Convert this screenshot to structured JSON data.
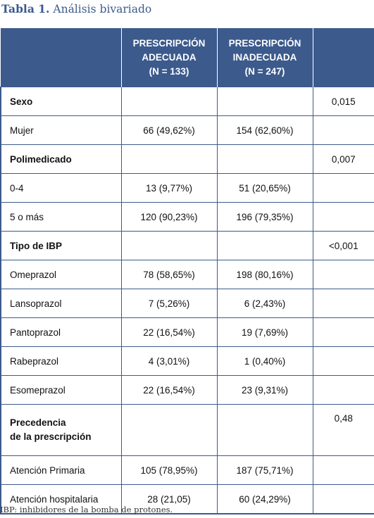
{
  "caption": {
    "label": "Tabla 1.",
    "title": "Análisis bivariado"
  },
  "header": {
    "col2": [
      "PRESCRIPCIÓN",
      "ADECUADA",
      "(N = 133)"
    ],
    "col3": [
      "PRESCRIPCIÓN",
      "INADECUADA",
      "(N = 247)"
    ]
  },
  "rows": [
    {
      "label": "Sexo",
      "a": "",
      "b": "",
      "p": "0,015"
    },
    {
      "label": "Mujer",
      "a": "66 (49,62%)",
      "b": "154 (62,60%)",
      "p": ""
    },
    {
      "label": "Polimedicado",
      "a": "",
      "b": "",
      "p": "0,007"
    },
    {
      "label": "0-4",
      "a": "13 (9,77%)",
      "b": "51 (20,65%)",
      "p": ""
    },
    {
      "label": "5 o más",
      "a": "120 (90,23%)",
      "b": "196 (79,35%)",
      "p": ""
    },
    {
      "label": "Tipo de IBP",
      "a": "",
      "b": "",
      "p": "<0,001"
    },
    {
      "label": "Omeprazol",
      "a": "78 (58,65%)",
      "b": "198 (80,16%)",
      "p": ""
    },
    {
      "label": "Lansoprazol",
      "a": "7 (5,26%)",
      "b": "6 (2,43%)",
      "p": ""
    },
    {
      "label": "Pantoprazol",
      "a": "22 (16,54%)",
      "b": "19 (7,69%)",
      "p": ""
    },
    {
      "label": "Rabeprazol",
      "a": "4 (3,01%)",
      "b": "1 (0,40%)",
      "p": ""
    },
    {
      "label": "Esomeprazol",
      "a": "22 (16,54%)",
      "b": "23 (9,31%)",
      "p": ""
    },
    {
      "label_lines": [
        "Precedencia",
        "de la prescripción"
      ],
      "a": "",
      "b": "",
      "p": "0,48"
    },
    {
      "label": "Atención Primaria",
      "a": "105 (78,95%)",
      "b": "187 (75,71%)",
      "p": ""
    },
    {
      "label": "Atención hospitalaria",
      "a": "28 (21,05)",
      "b": "60 (24,29%)",
      "p": ""
    }
  ],
  "footnote": "IBP: inhibidores de la bomba de protones."
}
